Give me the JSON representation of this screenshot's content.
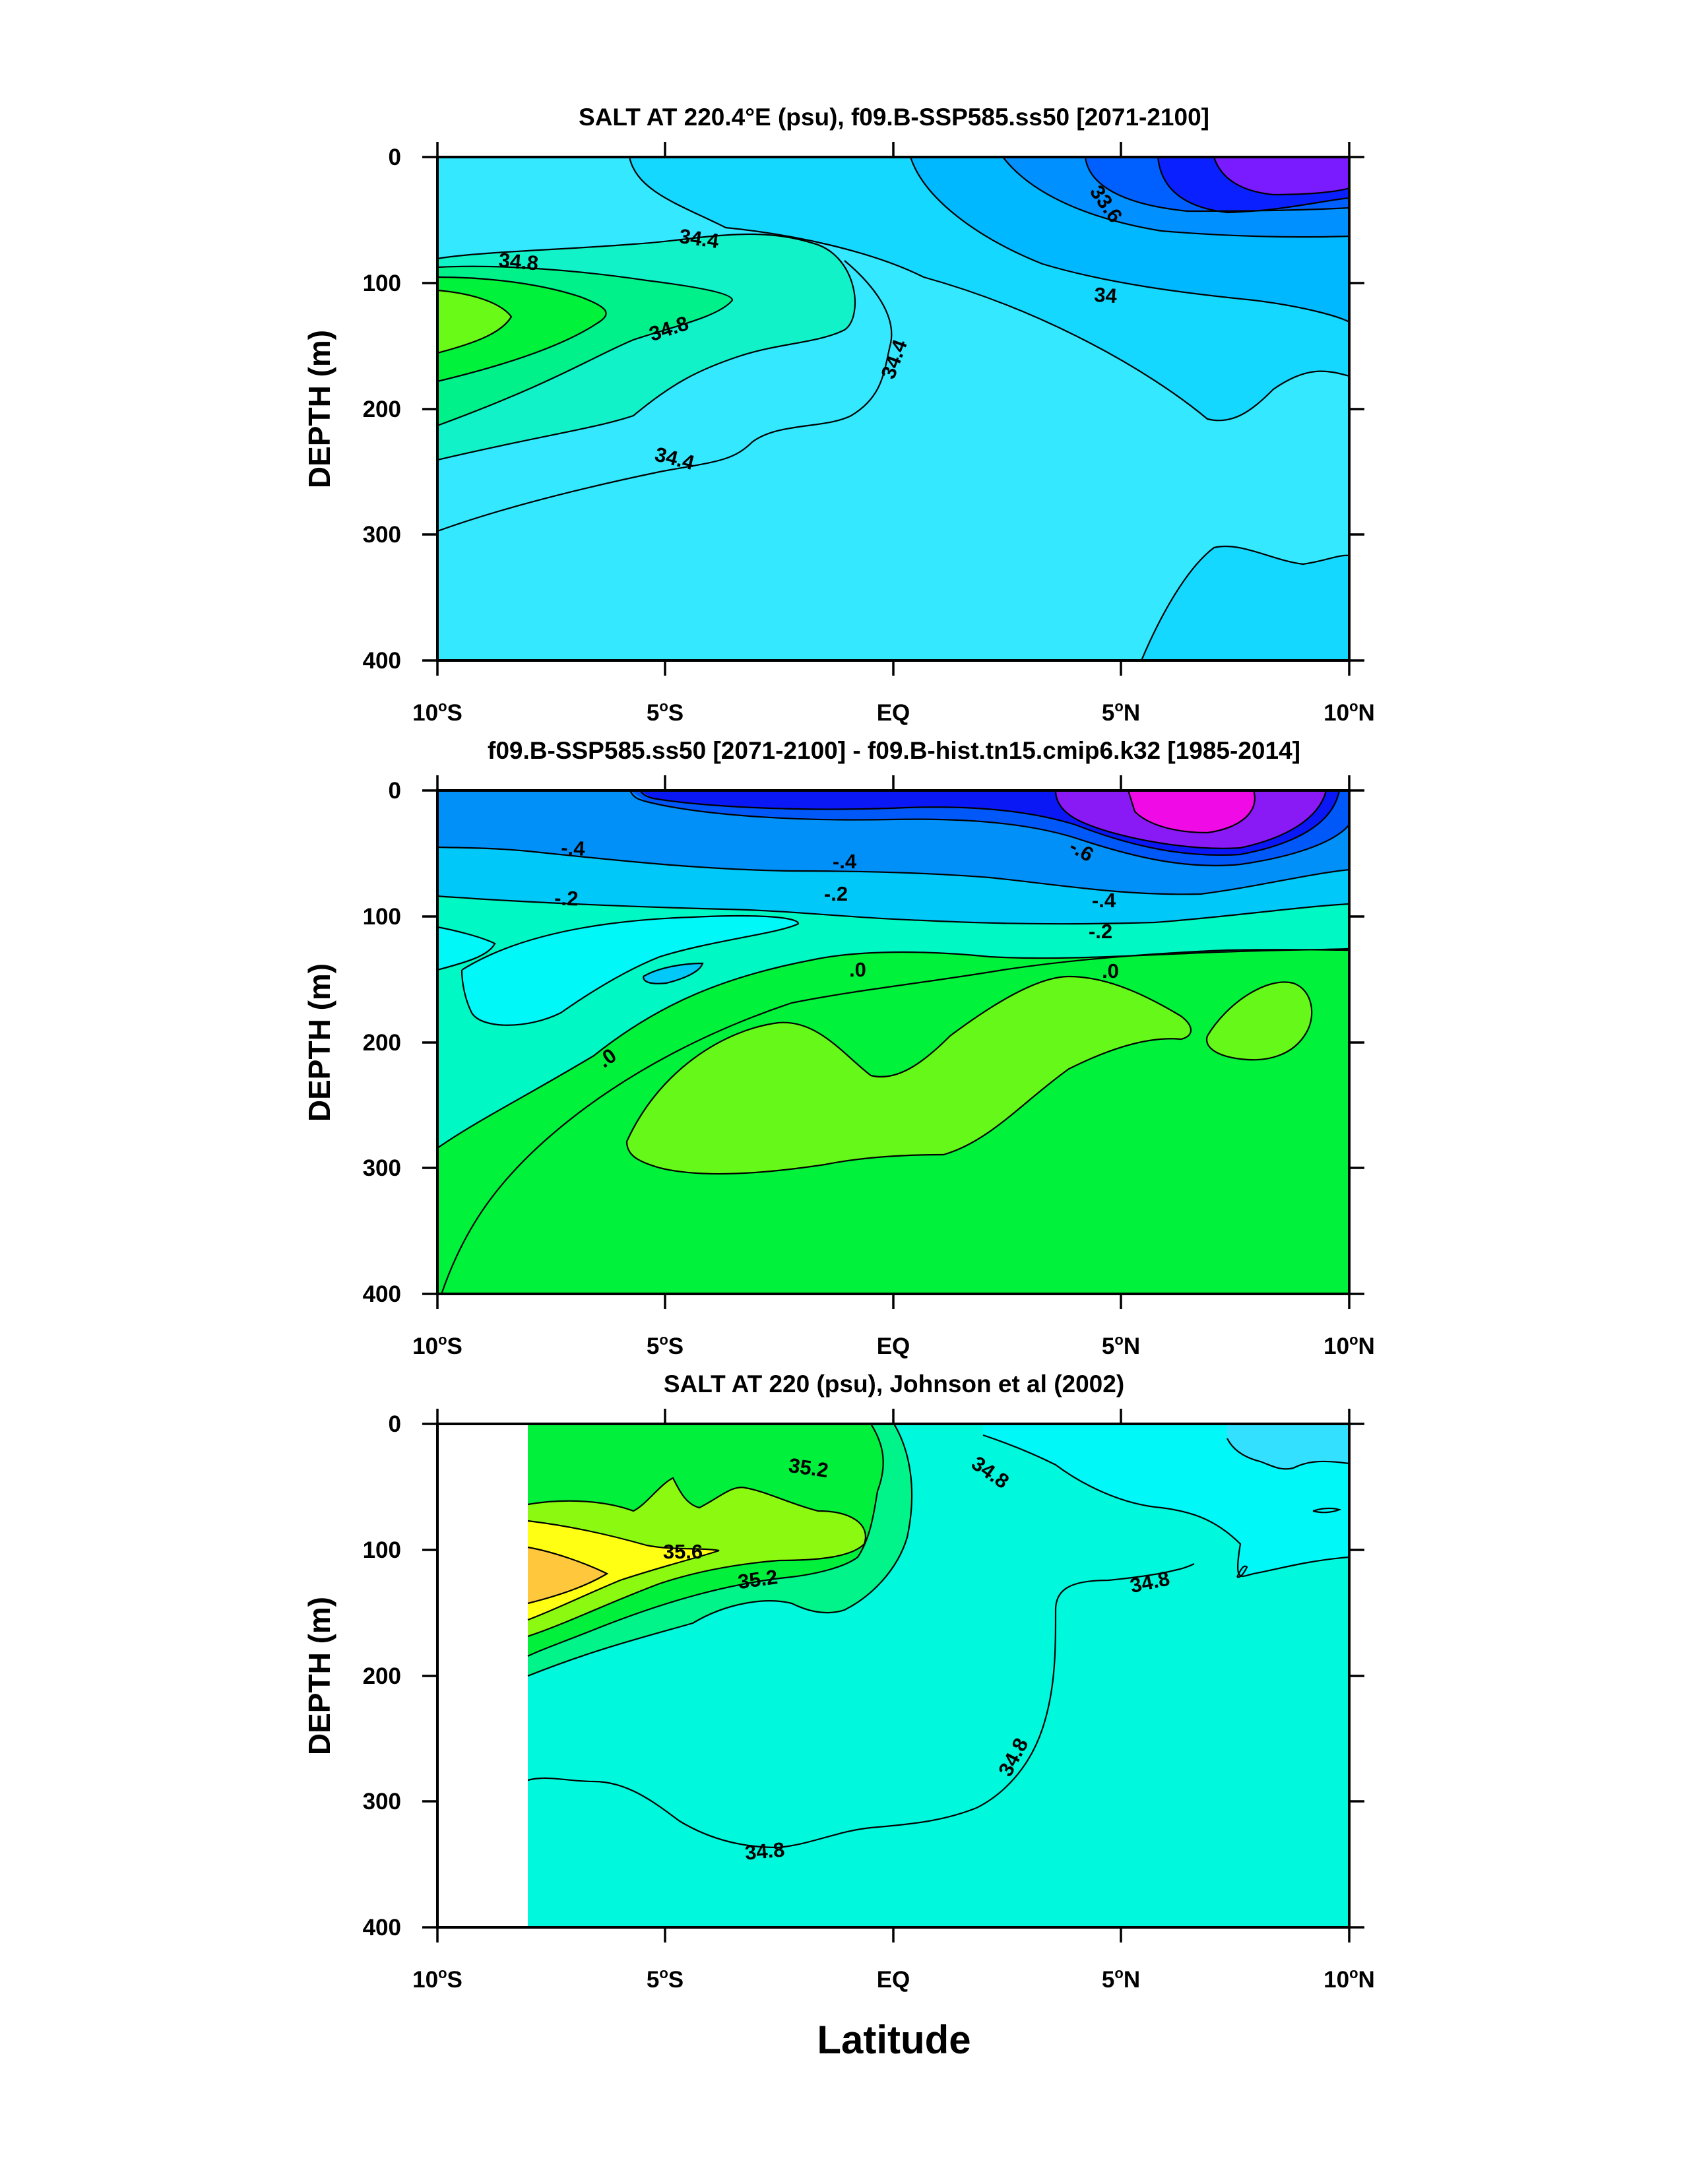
{
  "chart_data": [
    {
      "type": "heatmap",
      "title": "SALT AT 220.4°E (psu), f09.B-SSP585.ss50 [2071-2100]",
      "ylabel": "DEPTH (m)",
      "xlabel": "",
      "xlim": [
        -10,
        10
      ],
      "ylim": [
        400,
        0
      ],
      "yticks": [
        "0",
        "100",
        "200",
        "300",
        "400"
      ],
      "xticks": [
        {
          "num": "10",
          "deg": "o",
          "hem": "S"
        },
        {
          "num": "5",
          "deg": "o",
          "hem": "S"
        },
        {
          "num": "EQ",
          "deg": "",
          "hem": ""
        },
        {
          "num": "5",
          "deg": "o",
          "hem": "N"
        },
        {
          "num": "10",
          "deg": "o",
          "hem": "N"
        }
      ],
      "contour_labels": [
        "34.4",
        "34.8",
        "33.6",
        "34",
        "34.8",
        "34.4",
        "34.4"
      ],
      "colors": {
        "background": "#33e8ff",
        "level_3": "#14d8ff",
        "level_4": "#00b8ff",
        "level_5": "#0090ff",
        "level_6": "#0060ff",
        "level_7": "#0a20ff",
        "level_8": "#7a1aff",
        "salty_1": "#11f2c8",
        "salty_2": "#00f08a",
        "salty_3": "#00f23a",
        "salty_4": "#6afa18"
      }
    },
    {
      "type": "heatmap",
      "title": "f09.B-SSP585.ss50 [2071-2100] - f09.B-hist.tn15.cmip6.k32 [1985-2014]",
      "ylabel": "DEPTH (m)",
      "xlabel": "",
      "xlim": [
        -10,
        10
      ],
      "ylim": [
        400,
        0
      ],
      "yticks": [
        "0",
        "100",
        "200",
        "300",
        "400"
      ],
      "xticks": [
        {
          "num": "10",
          "deg": "o",
          "hem": "S"
        },
        {
          "num": "5",
          "deg": "o",
          "hem": "S"
        },
        {
          "num": "EQ",
          "deg": "",
          "hem": ""
        },
        {
          "num": "5",
          "deg": "o",
          "hem": "N"
        },
        {
          "num": "10",
          "deg": "o",
          "hem": "N"
        }
      ],
      "contour_labels": [
        "-.4",
        "-.2",
        "-.4",
        "-.2",
        "-.6",
        "-.4",
        "-.2",
        ".0",
        ".0",
        ".0"
      ],
      "colors": {
        "background": "#00f23a",
        "level_pos": "#66f818",
        "level_0": "#00f8c4",
        "level_m1": "#00f8f8",
        "level_m2": "#00c8f8",
        "level_m3": "#0090f8",
        "level_m4": "#0058f8",
        "level_m5": "#0a18f5",
        "level_m6": "#8a1af5",
        "level_m7": "#f00ae5"
      }
    },
    {
      "type": "heatmap",
      "title": "SALT AT 220 (psu), Johnson et al (2002)",
      "ylabel": "DEPTH (m)",
      "xlabel": "Latitude",
      "xlim": [
        -10,
        10
      ],
      "ylim": [
        400,
        0
      ],
      "data_start_lat": -8,
      "yticks": [
        "0",
        "100",
        "200",
        "300",
        "400"
      ],
      "xticks": [
        {
          "num": "10",
          "deg": "o",
          "hem": "S"
        },
        {
          "num": "5",
          "deg": "o",
          "hem": "S"
        },
        {
          "num": "EQ",
          "deg": "",
          "hem": ""
        },
        {
          "num": "5",
          "deg": "o",
          "hem": "N"
        },
        {
          "num": "10",
          "deg": "o",
          "hem": "N"
        }
      ],
      "contour_labels": [
        "35.2",
        "34.8",
        "35.6",
        "35.2",
        "34.8",
        "34.8",
        "34.8"
      ],
      "colors": {
        "background": "#00f8dc",
        "level_2": "#00f8f8",
        "level_3": "#33e0ff",
        "level_35": "#00f48a",
        "level_352": "#00f03c",
        "level_354": "#8cfa10",
        "level_356": "#ffff14",
        "level_358": "#ffc83c"
      }
    }
  ]
}
